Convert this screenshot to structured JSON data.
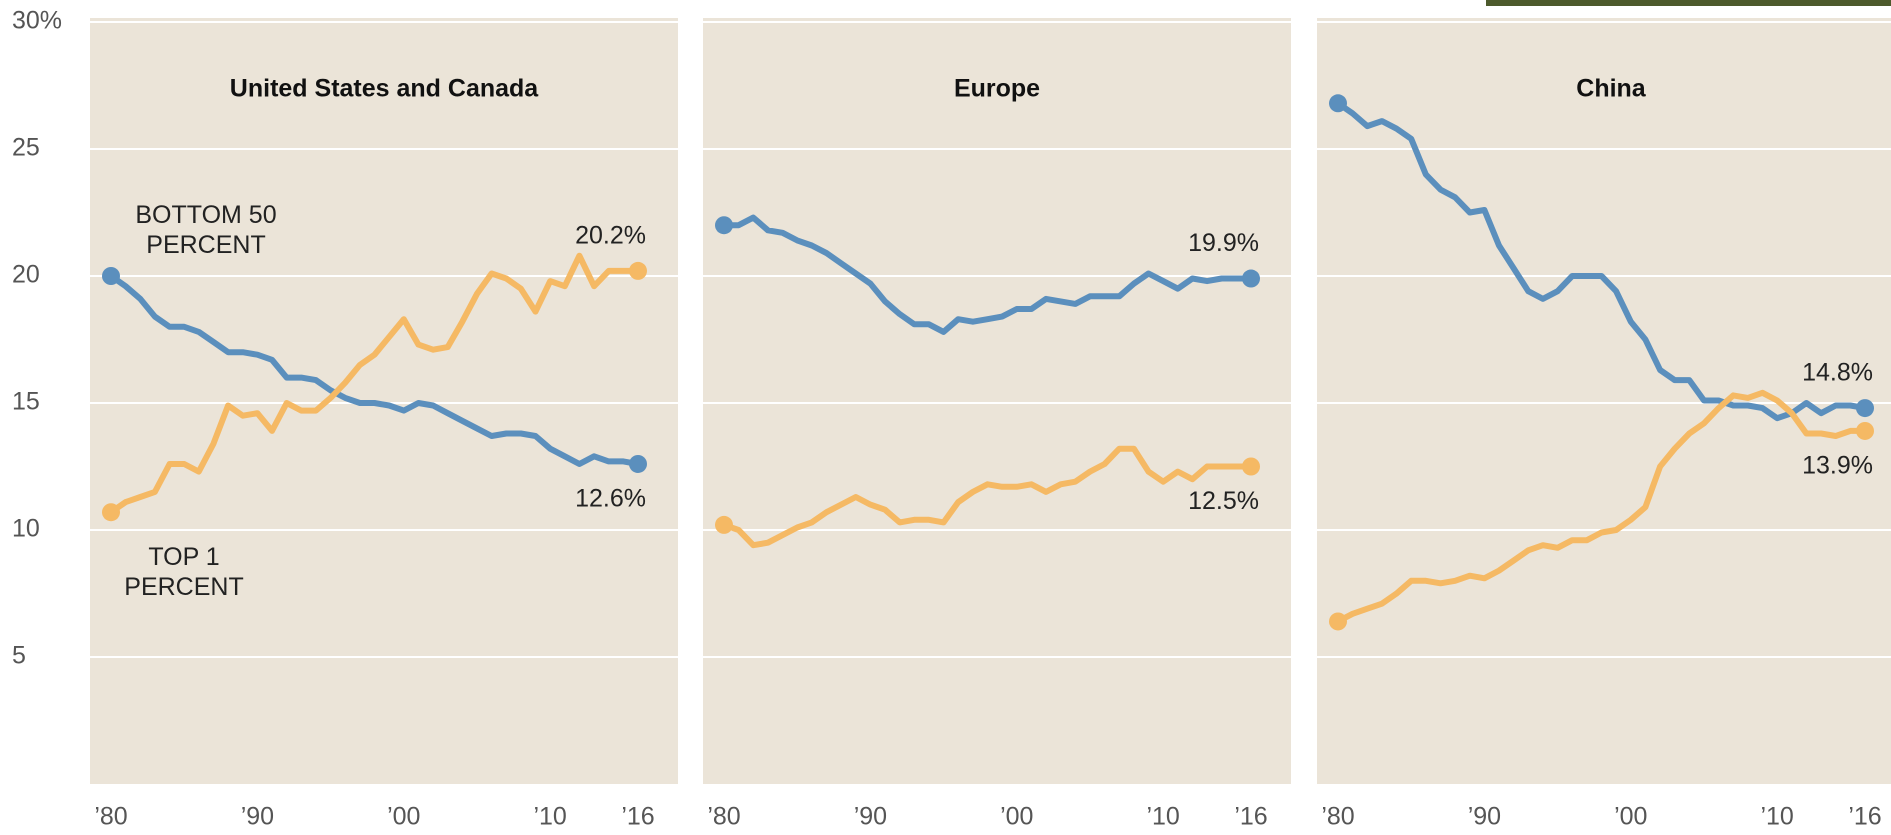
{
  "chart_data": [
    {
      "type": "line",
      "title": "United States and Canada",
      "x": [
        1980,
        1981,
        1982,
        1983,
        1984,
        1985,
        1986,
        1987,
        1988,
        1989,
        1990,
        1991,
        1992,
        1993,
        1994,
        1995,
        1996,
        1997,
        1998,
        1999,
        2000,
        2001,
        2002,
        2003,
        2004,
        2005,
        2006,
        2007,
        2008,
        2009,
        2010,
        2011,
        2012,
        2013,
        2014,
        2015,
        2016
      ],
      "xlim": [
        1980,
        2016
      ],
      "xticks": [
        {
          "value": 1980,
          "label": "’80"
        },
        {
          "value": 1990,
          "label": "’90"
        },
        {
          "value": 2000,
          "label": "’00"
        },
        {
          "value": 2010,
          "label": "’10"
        },
        {
          "value": 2016,
          "label": "’16"
        }
      ],
      "ylim": [
        0,
        30
      ],
      "yticks": [
        5,
        10,
        15,
        20,
        25,
        {
          "value": 30,
          "label": "30%"
        }
      ],
      "grid": true,
      "series": [
        {
          "name": "BOTTOM 50 PERCENT",
          "color": "#5b8fbd",
          "values": [
            20.0,
            19.6,
            19.1,
            18.4,
            18.0,
            18.0,
            17.8,
            17.4,
            17.0,
            17.0,
            16.9,
            16.7,
            16.0,
            16.0,
            15.9,
            15.5,
            15.2,
            15.0,
            15.0,
            14.9,
            14.7,
            15.0,
            14.9,
            14.6,
            14.3,
            14.0,
            13.7,
            13.8,
            13.8,
            13.7,
            13.2,
            12.9,
            12.6,
            12.9,
            12.7,
            12.7,
            12.6
          ],
          "value_labels": [
            null,
            null,
            null,
            null,
            null,
            null,
            null,
            null,
            null,
            null,
            null,
            null,
            null,
            null,
            null,
            null,
            null,
            null,
            null,
            null,
            null,
            null,
            null,
            null,
            null,
            null,
            null,
            null,
            null,
            null,
            null,
            null,
            null,
            null,
            null,
            null,
            "12.6%"
          ]
        },
        {
          "name": "TOP 1 PERCENT",
          "color": "#f5b964",
          "values": [
            10.7,
            11.1,
            11.3,
            11.5,
            12.6,
            12.6,
            12.3,
            13.4,
            14.9,
            14.5,
            14.6,
            13.9,
            15.0,
            14.7,
            14.7,
            15.2,
            15.8,
            16.5,
            16.9,
            17.6,
            18.3,
            17.3,
            17.1,
            17.2,
            18.2,
            19.3,
            20.1,
            19.9,
            19.5,
            18.6,
            19.8,
            19.6,
            20.8,
            19.6,
            20.2,
            20.2,
            20.2
          ],
          "value_labels": [
            null,
            null,
            null,
            null,
            null,
            null,
            null,
            null,
            null,
            null,
            null,
            null,
            null,
            null,
            null,
            null,
            null,
            null,
            null,
            null,
            null,
            null,
            null,
            null,
            null,
            null,
            null,
            null,
            null,
            null,
            null,
            null,
            null,
            null,
            null,
            null,
            "20.2%"
          ]
        }
      ]
    },
    {
      "type": "line",
      "title": "Europe",
      "x": [
        1980,
        1981,
        1982,
        1983,
        1984,
        1985,
        1986,
        1987,
        1988,
        1989,
        1990,
        1991,
        1992,
        1993,
        1994,
        1995,
        1996,
        1997,
        1998,
        1999,
        2000,
        2001,
        2002,
        2003,
        2004,
        2005,
        2006,
        2007,
        2008,
        2009,
        2010,
        2011,
        2012,
        2013,
        2014,
        2015,
        2016
      ],
      "xlim": [
        1980,
        2016
      ],
      "xticks": [
        {
          "value": 1980,
          "label": "’80"
        },
        {
          "value": 1990,
          "label": "’90"
        },
        {
          "value": 2000,
          "label": "’00"
        },
        {
          "value": 2010,
          "label": "’10"
        },
        {
          "value": 2016,
          "label": "’16"
        }
      ],
      "ylim": [
        0,
        30
      ],
      "grid": true,
      "series": [
        {
          "color": "#5b8fbd",
          "values": [
            22.0,
            22.0,
            22.3,
            21.8,
            21.7,
            21.4,
            21.2,
            20.9,
            20.5,
            20.1,
            19.7,
            19.0,
            18.5,
            18.1,
            18.1,
            17.8,
            18.3,
            18.2,
            18.3,
            18.4,
            18.7,
            18.7,
            19.1,
            19.0,
            18.9,
            19.2,
            19.2,
            19.2,
            19.7,
            20.1,
            19.8,
            19.5,
            19.9,
            19.8,
            19.9,
            19.9,
            19.9
          ],
          "value_labels": [
            null,
            null,
            null,
            null,
            null,
            null,
            null,
            null,
            null,
            null,
            null,
            null,
            null,
            null,
            null,
            null,
            null,
            null,
            null,
            null,
            null,
            null,
            null,
            null,
            null,
            null,
            null,
            null,
            null,
            null,
            null,
            null,
            null,
            null,
            null,
            null,
            "19.9%"
          ]
        },
        {
          "color": "#f5b964",
          "values": [
            10.2,
            10.0,
            9.4,
            9.5,
            9.8,
            10.1,
            10.3,
            10.7,
            11.0,
            11.3,
            11.0,
            10.8,
            10.3,
            10.4,
            10.4,
            10.3,
            11.1,
            11.5,
            11.8,
            11.7,
            11.7,
            11.8,
            11.5,
            11.8,
            11.9,
            12.3,
            12.6,
            13.2,
            13.2,
            12.3,
            11.9,
            12.3,
            12.0,
            12.5,
            12.5,
            12.5,
            12.5
          ],
          "value_labels": [
            null,
            null,
            null,
            null,
            null,
            null,
            null,
            null,
            null,
            null,
            null,
            null,
            null,
            null,
            null,
            null,
            null,
            null,
            null,
            null,
            null,
            null,
            null,
            null,
            null,
            null,
            null,
            null,
            null,
            null,
            null,
            null,
            null,
            null,
            null,
            null,
            "12.5%"
          ]
        }
      ]
    },
    {
      "type": "line",
      "title": "China",
      "x": [
        1980,
        1981,
        1982,
        1983,
        1984,
        1985,
        1986,
        1987,
        1988,
        1989,
        1990,
        1991,
        1992,
        1993,
        1994,
        1995,
        1996,
        1997,
        1998,
        1999,
        2000,
        2001,
        2002,
        2003,
        2004,
        2005,
        2006,
        2007,
        2008,
        2009,
        2010,
        2011,
        2012,
        2013,
        2014,
        2015,
        2016
      ],
      "xlim": [
        1980,
        2016
      ],
      "xticks": [
        {
          "value": 1980,
          "label": "’80"
        },
        {
          "value": 1990,
          "label": "’90"
        },
        {
          "value": 2000,
          "label": "’00"
        },
        {
          "value": 2010,
          "label": "’10"
        },
        {
          "value": 2016,
          "label": "’16"
        }
      ],
      "ylim": [
        0,
        30
      ],
      "grid": true,
      "series": [
        {
          "color": "#5b8fbd",
          "values": [
            26.8,
            26.4,
            25.9,
            26.1,
            25.8,
            25.4,
            24.0,
            23.4,
            23.1,
            22.5,
            22.6,
            21.2,
            20.3,
            19.4,
            19.1,
            19.4,
            20.0,
            20.0,
            20.0,
            19.4,
            18.2,
            17.5,
            16.3,
            15.9,
            15.9,
            15.1,
            15.1,
            14.9,
            14.9,
            14.8,
            14.4,
            14.6,
            15.0,
            14.6,
            14.9,
            14.9,
            14.8
          ],
          "value_labels": [
            null,
            null,
            null,
            null,
            null,
            null,
            null,
            null,
            null,
            null,
            null,
            null,
            null,
            null,
            null,
            null,
            null,
            null,
            null,
            null,
            null,
            null,
            null,
            null,
            null,
            null,
            null,
            null,
            null,
            null,
            null,
            null,
            null,
            null,
            null,
            null,
            "14.8%"
          ]
        },
        {
          "color": "#f5b964",
          "values": [
            6.4,
            6.7,
            6.9,
            7.1,
            7.5,
            8.0,
            8.0,
            7.9,
            8.0,
            8.2,
            8.1,
            8.4,
            8.8,
            9.2,
            9.4,
            9.3,
            9.6,
            9.6,
            9.9,
            10.0,
            10.4,
            10.9,
            12.5,
            13.2,
            13.8,
            14.2,
            14.8,
            15.3,
            15.2,
            15.4,
            15.1,
            14.6,
            13.8,
            13.8,
            13.7,
            13.9,
            13.9
          ],
          "value_labels": [
            null,
            null,
            null,
            null,
            null,
            null,
            null,
            null,
            null,
            null,
            null,
            null,
            null,
            null,
            null,
            null,
            null,
            null,
            null,
            null,
            null,
            null,
            null,
            null,
            null,
            null,
            null,
            null,
            null,
            null,
            null,
            null,
            null,
            null,
            null,
            null,
            "13.9%"
          ]
        }
      ]
    }
  ]
}
